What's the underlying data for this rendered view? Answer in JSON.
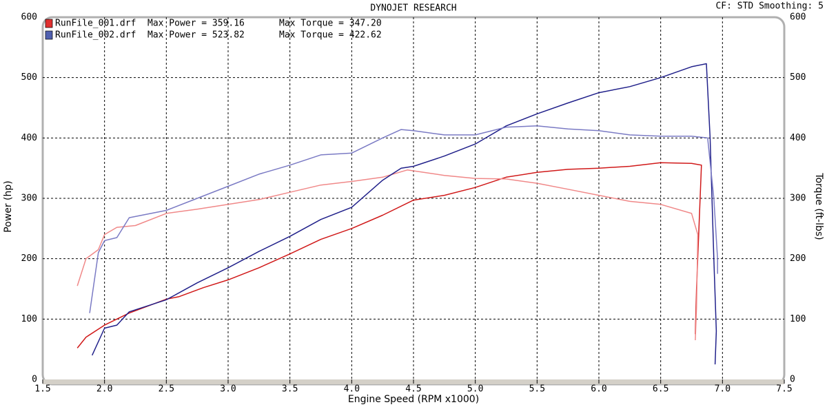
{
  "chart_data": {
    "type": "line",
    "title": "DYNOJET RESEARCH",
    "subtitle": "CF: STD  Smoothing: 5",
    "x_label": "Engine Speed (RPM x1000)",
    "y_label": "Power (hp)",
    "y2_label": "Torque (ft-lbs)",
    "legend": [
      {
        "file": "RunFile_001.drf",
        "power": "Max Power = 359.16",
        "torque": "Max Torque = 347.20",
        "color": "#e03030"
      },
      {
        "file": "RunFile_002.drf",
        "power": "Max Power = 523.82",
        "torque": "Max Torque = 422.62",
        "color": "#5060b0"
      }
    ],
    "xlim": [
      1.5,
      7.5
    ],
    "xticks": [
      1.5,
      {
        "value": 2,
        "label": "2.0"
      },
      2.5,
      {
        "value": 3,
        "label": "3.0"
      },
      3.5,
      {
        "value": 4,
        "label": "4.0"
      },
      4.5,
      {
        "value": 5,
        "label": "5.0"
      },
      5.5,
      {
        "value": 6,
        "label": "6.0"
      },
      6.5,
      {
        "value": 7,
        "label": "7.0"
      },
      7.5
    ],
    "ylim": [
      0,
      600
    ],
    "yticks": [
      0,
      100,
      200,
      300,
      400,
      500,
      600
    ],
    "y2lim": [
      0,
      600
    ],
    "y2ticks": [
      0,
      100,
      200,
      300,
      400,
      500,
      600
    ],
    "grid": true,
    "series": [
      {
        "color": "#d01818",
        "x": [
          1.78,
          1.85,
          2.0,
          2.2,
          2.5,
          2.6,
          2.8,
          3.0,
          3.25,
          3.5,
          3.75,
          4.0,
          4.25,
          4.5,
          4.75,
          5.0,
          5.25,
          5.5,
          5.75,
          6.0,
          6.25,
          6.5,
          6.75,
          6.83,
          6.79,
          6.78
        ],
        "values": [
          52,
          70,
          90,
          110,
          133,
          137,
          152,
          165,
          185,
          208,
          232,
          250,
          272,
          297,
          305,
          318,
          335,
          343,
          348,
          350,
          353,
          359,
          358,
          355,
          150,
          75
        ]
      },
      {
        "color": "#f08888",
        "x": [
          1.78,
          1.85,
          1.95,
          2.0,
          2.1,
          2.25,
          2.5,
          2.75,
          3.0,
          3.25,
          3.5,
          3.75,
          4.0,
          4.25,
          4.45,
          4.75,
          5.0,
          5.25,
          5.5,
          5.75,
          6.0,
          6.25,
          6.5,
          6.75,
          6.8,
          6.79,
          6.78
        ],
        "values": [
          155,
          200,
          215,
          240,
          252,
          255,
          275,
          282,
          290,
          298,
          310,
          322,
          328,
          335,
          347,
          338,
          333,
          332,
          325,
          315,
          305,
          295,
          290,
          275,
          240,
          120,
          65
        ]
      },
      {
        "color": "#20208a",
        "x": [
          1.9,
          2.0,
          2.1,
          2.2,
          2.5,
          2.75,
          3.0,
          3.25,
          3.5,
          3.75,
          4.0,
          4.25,
          4.4,
          4.5,
          4.75,
          5.0,
          5.25,
          5.5,
          5.75,
          6.0,
          6.25,
          6.5,
          6.75,
          6.87,
          6.9,
          6.93,
          6.95,
          6.94
        ],
        "values": [
          40,
          85,
          90,
          112,
          132,
          160,
          185,
          212,
          237,
          265,
          285,
          330,
          350,
          353,
          370,
          390,
          420,
          440,
          458,
          475,
          485,
          500,
          518,
          523,
          400,
          200,
          80,
          25
        ]
      },
      {
        "color": "#7a7ac4",
        "x": [
          1.88,
          1.95,
          2.0,
          2.1,
          2.2,
          2.5,
          2.75,
          3.0,
          3.25,
          3.5,
          3.75,
          4.0,
          4.25,
          4.4,
          4.5,
          4.75,
          5.0,
          5.25,
          5.5,
          5.75,
          6.0,
          6.25,
          6.5,
          6.75,
          6.88,
          6.93,
          6.96,
          6.96
        ],
        "values": [
          110,
          210,
          230,
          235,
          268,
          280,
          300,
          320,
          340,
          355,
          372,
          375,
          400,
          414,
          412,
          405,
          405,
          418,
          420,
          415,
          412,
          405,
          403,
          403,
          400,
          300,
          200,
          175
        ]
      }
    ]
  }
}
